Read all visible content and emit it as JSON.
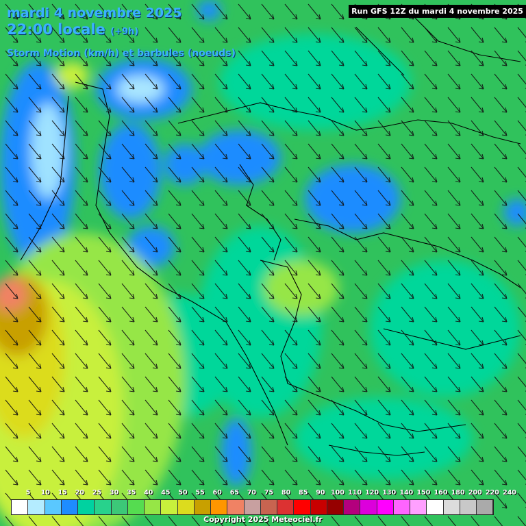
{
  "header": {
    "date": "mardi 4 novembre 2025",
    "time": "22:00 locale",
    "offset": "(+9h)",
    "parameter": "Storm Motion (km/h) et barbules (noeuds)"
  },
  "run_label": "Run GFS 12Z du mardi 4 novembre 2025",
  "legend": {
    "labels": [
      "5",
      "10",
      "15",
      "20",
      "25",
      "30",
      "35",
      "40",
      "45",
      "50",
      "55",
      "60",
      "65",
      "70",
      "75",
      "80",
      "85",
      "90",
      "100",
      "110",
      "120",
      "130",
      "140",
      "150",
      "160",
      "180",
      "200",
      "220",
      "240"
    ],
    "colors": [
      "#ffffff",
      "#b4ecff",
      "#5ac8ff",
      "#1e8cff",
      "#00d2a0",
      "#28d28c",
      "#3cc878",
      "#55dc50",
      "#96e646",
      "#c8f03c",
      "#dcdc1e",
      "#c8a000",
      "#ff9600",
      "#f08264",
      "#c8a0a0",
      "#c86450",
      "#dc3232",
      "#ff0000",
      "#c80000",
      "#960000",
      "#b4007d",
      "#dc00dc",
      "#ff00ff",
      "#ff64ff",
      "#ffa0ff",
      "#ffffff",
      "#dcdcdc",
      "#c8c8c8",
      "#aaaaaa"
    ]
  },
  "copyright": "Copyright 2025 Meteociel.fr"
}
